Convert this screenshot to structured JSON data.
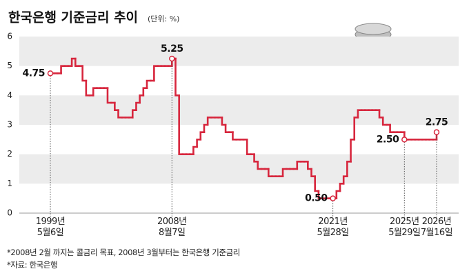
{
  "chart_data": {
    "type": "line",
    "title": "한국은행 기준금리 추이",
    "subtitle": "(단위: %)",
    "notes": [
      "*2008년 2월 까지는 콜금리 목표, 2008년 3월부터는 한국은행 기준금리",
      "*자료: 한국은행"
    ],
    "color": "#d7263d",
    "step": true,
    "bands": true,
    "ylim": [
      0,
      6
    ],
    "yticks": [
      0,
      1,
      2,
      3,
      4,
      5,
      6
    ],
    "categories": [
      "1999년\n5월6일",
      null,
      null,
      null,
      null,
      null,
      null,
      null,
      null,
      null,
      null,
      null,
      null,
      null,
      null,
      null,
      null,
      null,
      null,
      null,
      null,
      null,
      null,
      null,
      null,
      null,
      null,
      null,
      null,
      null,
      null,
      null,
      null,
      null,
      "2008년\n8월7일",
      null,
      null,
      null,
      null,
      null,
      null,
      null,
      null,
      null,
      null,
      null,
      null,
      null,
      null,
      null,
      null,
      null,
      null,
      null,
      null,
      null,
      null,
      null,
      null,
      null,
      null,
      null,
      null,
      null,
      null,
      null,
      null,
      null,
      null,
      null,
      null,
      null,
      null,
      null,
      null,
      null,
      null,
      null,
      null,
      "2021년\n5월28일",
      null,
      null,
      null,
      null,
      null,
      null,
      null,
      null,
      null,
      null,
      null,
      null,
      null,
      null,
      null,
      null,
      null,
      null,
      null,
      "2025년\n5월29일",
      null,
      null,
      null,
      null,
      null,
      null,
      null,
      null,
      "2026년\n7월16일"
    ],
    "values": [
      4.75,
      4.75,
      4.75,
      5,
      5,
      5,
      5.25,
      5,
      5,
      4.5,
      4,
      4,
      4.25,
      4.25,
      4.25,
      4.25,
      3.75,
      3.75,
      3.5,
      3.25,
      3.25,
      3.25,
      3.25,
      3.5,
      3.75,
      4,
      4.25,
      4.5,
      4.5,
      5,
      5,
      5,
      5,
      5,
      5.25,
      4,
      2,
      2,
      2,
      2,
      2.25,
      2.5,
      2.75,
      3,
      3.25,
      3.25,
      3.25,
      3.25,
      3,
      2.75,
      2.75,
      2.5,
      2.5,
      2.5,
      2.5,
      2,
      2,
      1.75,
      1.5,
      1.5,
      1.5,
      1.25,
      1.25,
      1.25,
      1.25,
      1.5,
      1.5,
      1.5,
      1.5,
      1.75,
      1.75,
      1.75,
      1.5,
      1.25,
      0.75,
      0.5,
      0.5,
      0.5,
      0.5,
      0.5,
      0.75,
      1,
      1.25,
      1.75,
      2.5,
      3.25,
      3.5,
      3.5,
      3.5,
      3.5,
      3.5,
      3.5,
      3.25,
      3,
      3,
      2.75,
      2.75,
      2.75,
      2.75,
      2.5,
      2.5,
      2.5,
      2.5,
      2.5,
      2.5,
      2.5,
      2.5,
      2.5,
      2.75
    ],
    "value_labels": [
      "4.75",
      null,
      null,
      null,
      null,
      null,
      null,
      null,
      null,
      null,
      null,
      null,
      null,
      null,
      null,
      null,
      null,
      null,
      null,
      null,
      null,
      null,
      null,
      null,
      null,
      null,
      null,
      null,
      null,
      null,
      null,
      null,
      null,
      null,
      "5.25",
      null,
      null,
      null,
      null,
      null,
      null,
      null,
      null,
      null,
      null,
      null,
      null,
      null,
      null,
      null,
      null,
      null,
      null,
      null,
      null,
      null,
      null,
      null,
      null,
      null,
      null,
      null,
      null,
      null,
      null,
      null,
      null,
      null,
      null,
      null,
      null,
      null,
      null,
      null,
      null,
      null,
      null,
      null,
      null,
      "0.50",
      null,
      null,
      null,
      null,
      null,
      null,
      null,
      null,
      null,
      null,
      null,
      null,
      null,
      null,
      null,
      null,
      null,
      null,
      null,
      "2.50",
      null,
      null,
      null,
      null,
      null,
      null,
      null,
      null,
      "2.75"
    ]
  }
}
